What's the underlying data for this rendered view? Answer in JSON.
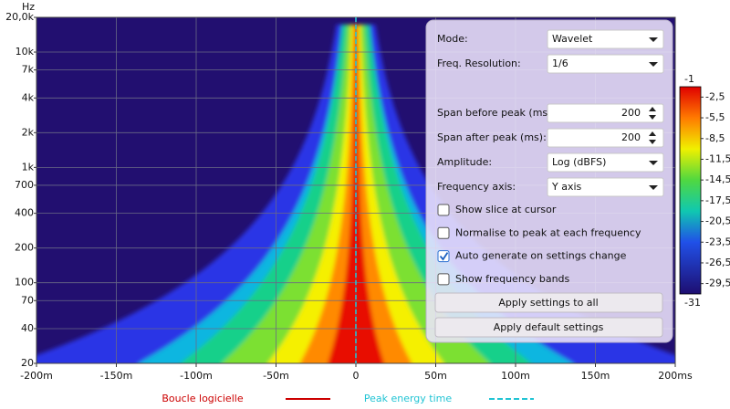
{
  "chart_data": {
    "type": "spectrogram",
    "y_unit_label": "Hz",
    "xlim": [
      -200,
      200
    ],
    "xticks": [
      {
        "value": -200,
        "label": "-200m"
      },
      {
        "value": -150,
        "label": "-150m"
      },
      {
        "value": -100,
        "label": "-100m"
      },
      {
        "value": -50,
        "label": "-50m"
      },
      0,
      {
        "value": 50,
        "label": "50m"
      },
      {
        "value": 100,
        "label": "100m"
      },
      {
        "value": 150,
        "label": "150m"
      },
      {
        "value": 200,
        "label": "200ms"
      }
    ],
    "ylim": [
      20,
      20000
    ],
    "log_y": true,
    "yticks": [
      {
        "value": 20000,
        "label": "20,0k"
      },
      {
        "value": 10000,
        "label": "10k"
      },
      {
        "value": 7000,
        "label": "7k"
      },
      {
        "value": 4000,
        "label": "4k"
      },
      {
        "value": 2000,
        "label": "2k"
      },
      {
        "value": 1000,
        "label": "1k"
      },
      700,
      400,
      200,
      100,
      70,
      40,
      20
    ],
    "grid": true,
    "colorbar": {
      "clim": [
        -31,
        -1
      ],
      "ticks": [
        {
          "value": -2.5,
          "label": "-2,5"
        },
        {
          "value": -5.5,
          "label": "-5,5"
        },
        {
          "value": -8.5,
          "label": "-8,5"
        },
        {
          "value": -11.5,
          "label": "-11,5"
        },
        {
          "value": -14.5,
          "label": "-14,5"
        },
        {
          "value": -17.5,
          "label": "-17,5"
        },
        {
          "value": -20.5,
          "label": "-20,5"
        },
        {
          "value": -23.5,
          "label": "-23,5"
        },
        {
          "value": -26.5,
          "label": "-26,5"
        },
        {
          "value": -29.5,
          "label": "-29,5"
        }
      ]
    },
    "legend": [
      {
        "name": "Boucle logicielle",
        "color": "#cc0000",
        "dashed": false
      },
      {
        "name": "Peak energy time",
        "color": "#22c4d4",
        "dashed": true
      }
    ]
  },
  "settings_panel": {
    "fields": [
      {
        "label": "Mode:",
        "value": "Wavelet",
        "control": "dropdown"
      },
      {
        "label": "Freq. Resolution:",
        "value": "1/6",
        "control": "dropdown"
      },
      {
        "label": "Span before peak (ms):",
        "value": 200,
        "control": "spinner"
      },
      {
        "label": "Span after peak (ms):",
        "value": 200,
        "control": "spinner"
      },
      {
        "label": "Amplitude:",
        "value": "Log (dBFS)",
        "control": "dropdown"
      },
      {
        "label": "Frequency axis:",
        "value": "Y axis",
        "control": "dropdown"
      }
    ],
    "checkboxes": [
      {
        "label": "Show slice at cursor",
        "checked": false
      },
      {
        "label": "Normalise to peak at each frequency",
        "checked": false
      },
      {
        "label": "Auto generate on settings change",
        "checked": true
      },
      {
        "label": "Show frequency bands",
        "checked": false
      }
    ],
    "buttons": [
      "Apply settings to all",
      "Apply default settings"
    ]
  }
}
